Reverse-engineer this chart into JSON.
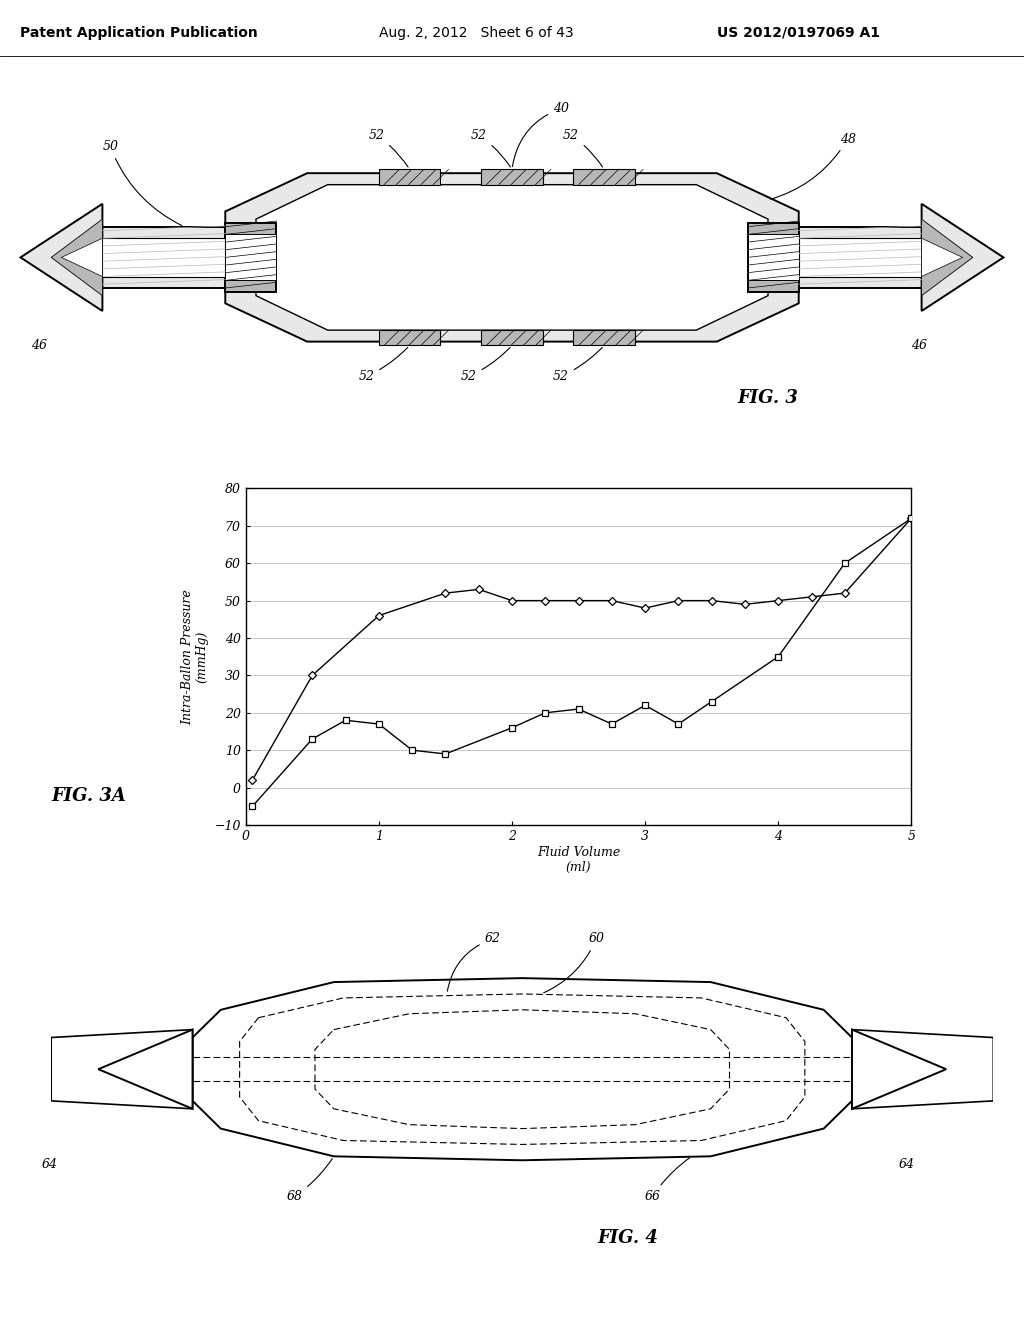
{
  "header_left": "Patent Application Publication",
  "header_mid": "Aug. 2, 2012   Sheet 6 of 43",
  "header_right": "US 2012/0197069 A1",
  "fig3_label": "FIG. 3",
  "fig3a_label": "FIG. 3A",
  "fig4_label": "FIG. 4",
  "chart_ylabel": "Intra-Ballon Pressure\n(mmHg)",
  "chart_xlabel_line1": "Fluid Volume",
  "chart_xlabel_line2": "(ml)",
  "chart_xlim": [
    0,
    5
  ],
  "chart_ylim": [
    -10,
    80
  ],
  "chart_yticks": [
    -10,
    0,
    10,
    20,
    30,
    40,
    50,
    60,
    70,
    80
  ],
  "chart_xticks": [
    0,
    1,
    2,
    3,
    4,
    5
  ],
  "series1_x": [
    0.05,
    0.5,
    1.0,
    1.5,
    1.75,
    2.0,
    2.25,
    2.5,
    2.75,
    3.0,
    3.25,
    3.5,
    3.75,
    4.0,
    4.25,
    4.5,
    5.0
  ],
  "series1_y": [
    2,
    30,
    46,
    52,
    53,
    50,
    50,
    50,
    50,
    48,
    50,
    50,
    49,
    50,
    51,
    52,
    72
  ],
  "series2_x": [
    0.05,
    0.5,
    0.75,
    1.0,
    1.25,
    1.5,
    2.0,
    2.25,
    2.5,
    2.75,
    3.0,
    3.25,
    3.5,
    4.0,
    4.5,
    5.0
  ],
  "series2_y": [
    -5,
    13,
    18,
    17,
    10,
    9,
    16,
    20,
    21,
    17,
    22,
    17,
    23,
    35,
    60,
    72
  ],
  "bg_color": "#ffffff",
  "line_color": "#000000",
  "grid_color": "#bbbbbb"
}
